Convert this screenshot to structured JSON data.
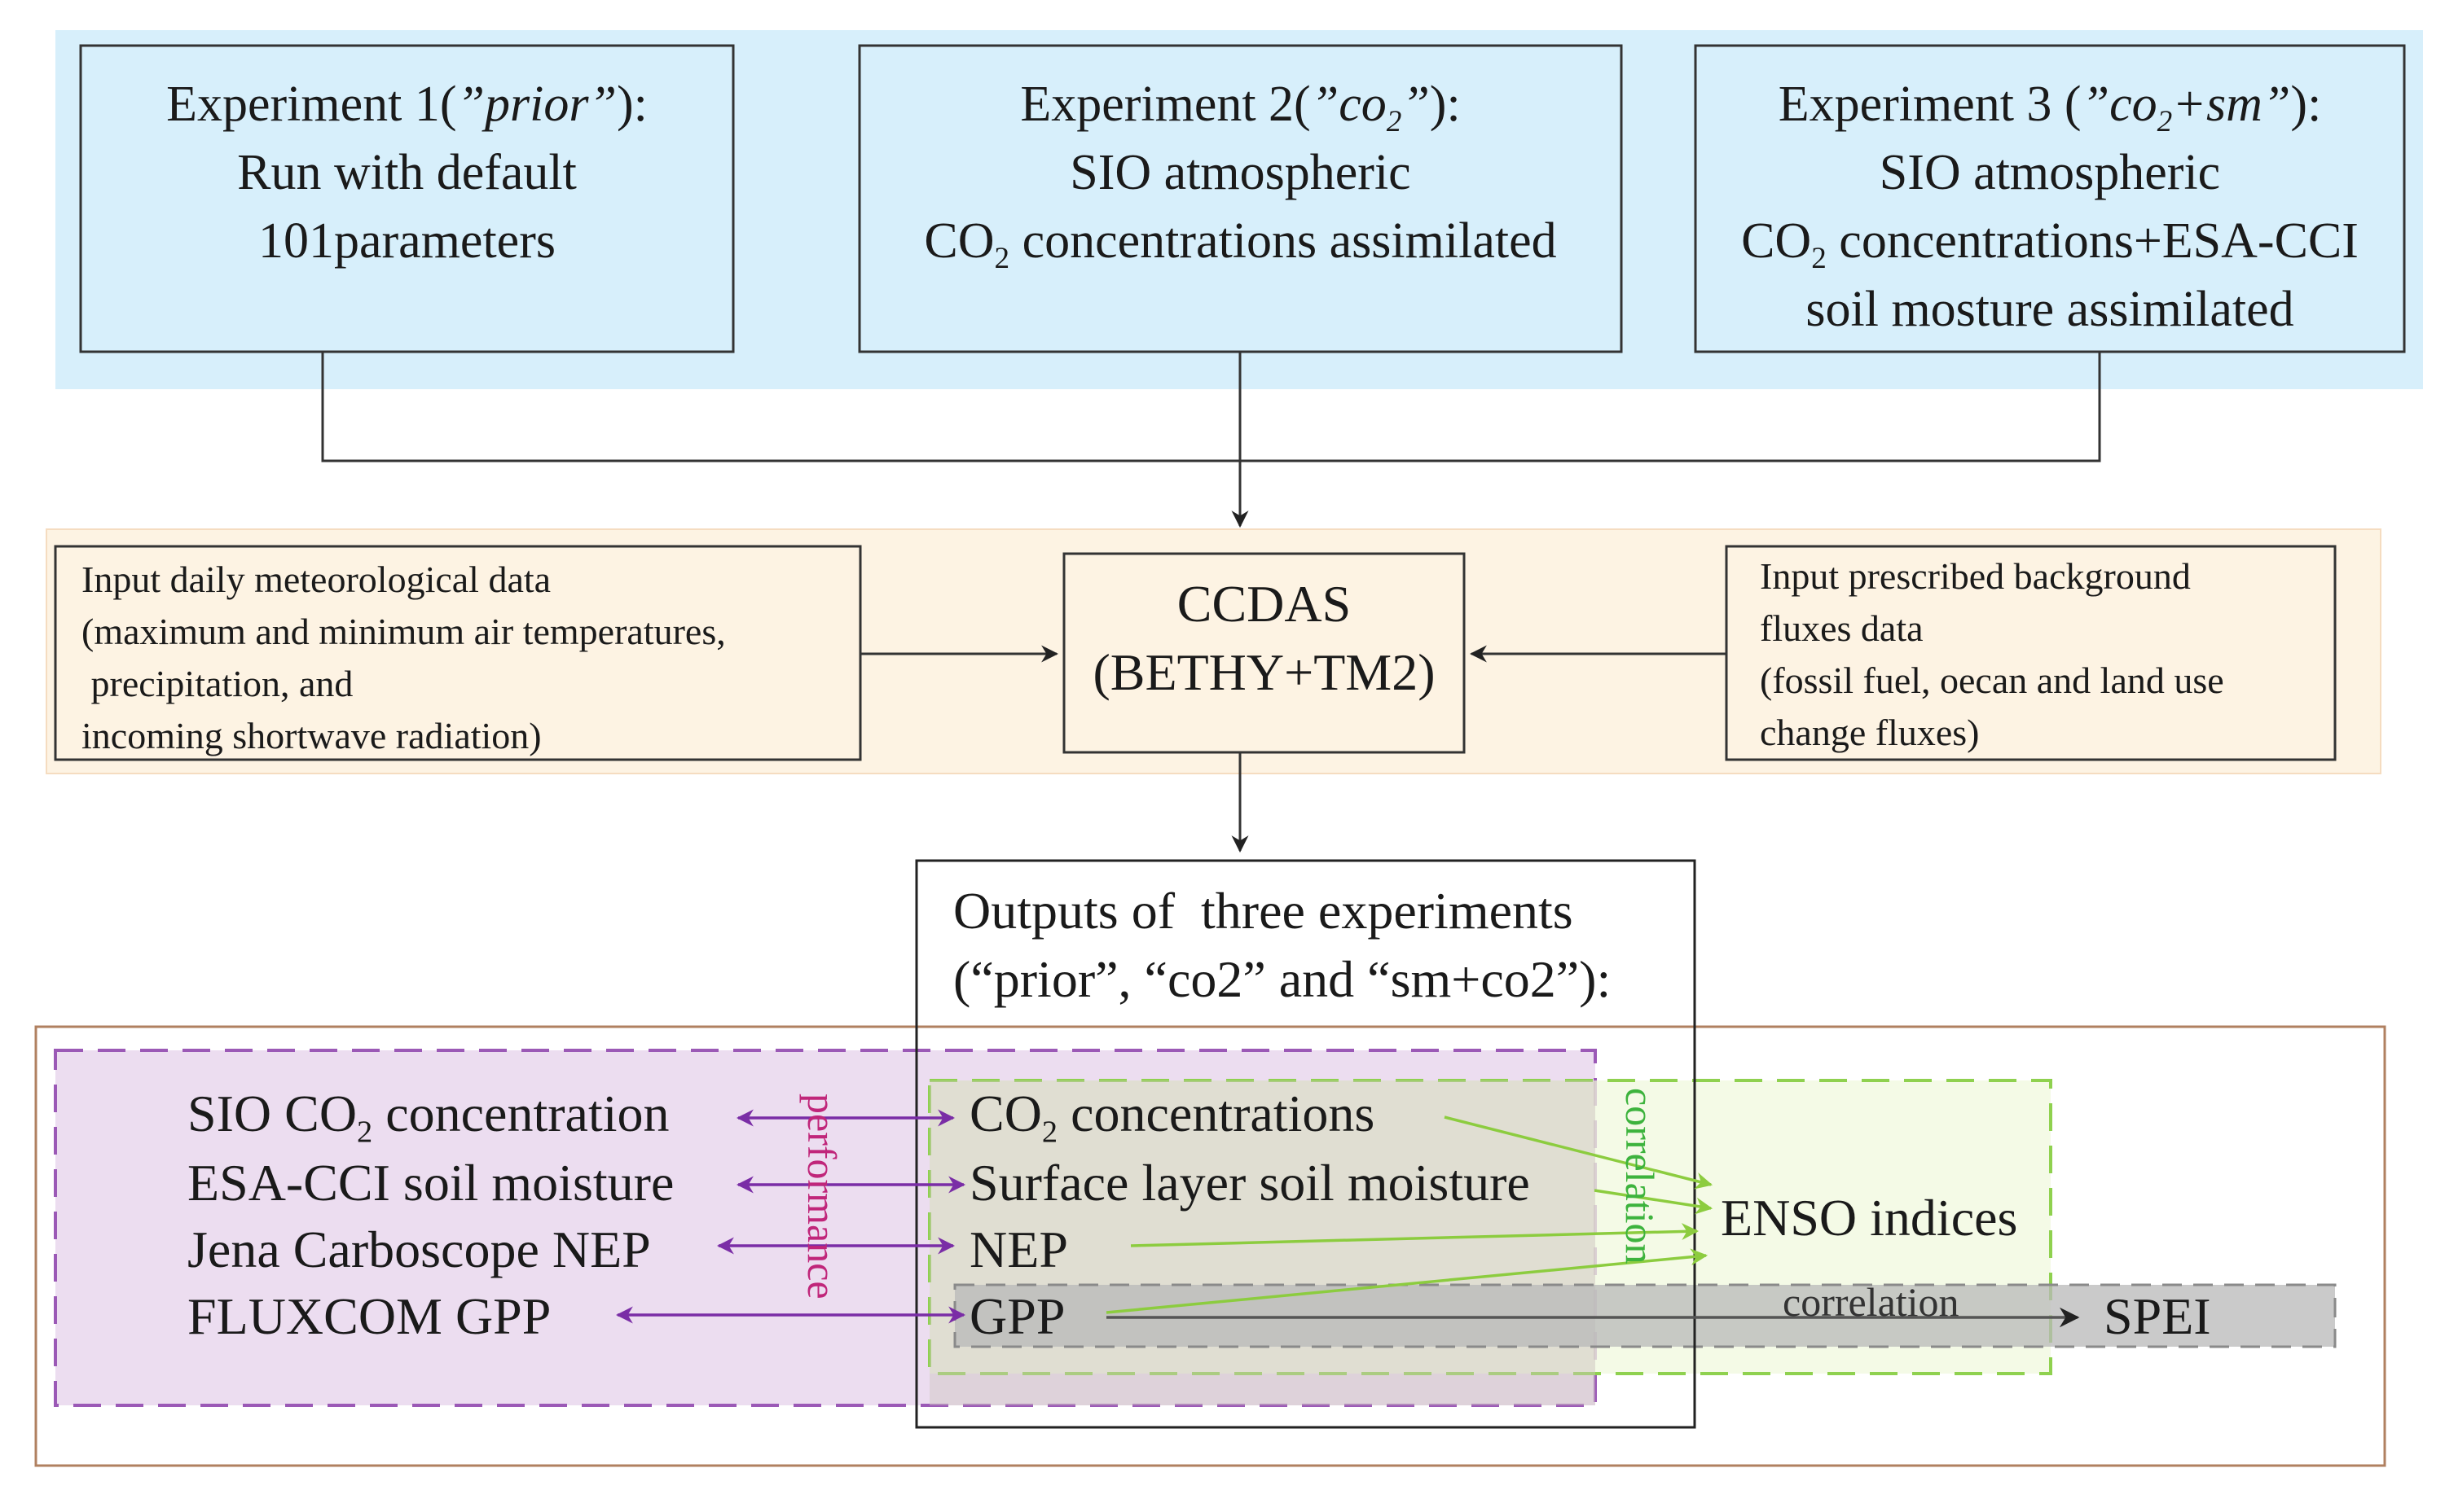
{
  "colors": {
    "experiments_band": "#d7effb",
    "inputs_band": "#fdf3e3",
    "performance_region": "#ead9ee",
    "performance_border": "#9b59b6",
    "performance_label": "#c0267a",
    "correlation_region": "#f0f8de",
    "correlation_border": "#8fd14f",
    "correlation_label": "#3db33d",
    "spei_band": "#c6c6c6",
    "outer_border": "#b08060",
    "purple_arrow": "#7a2da6",
    "green_arrow": "#8ccc3f"
  },
  "experiments": [
    {
      "title_prefix": "Experiment 1(",
      "title_name": "”prior”",
      "title_suffix": "):",
      "lines": [
        "Run with default",
        "101parameters"
      ]
    },
    {
      "title_prefix": "Experiment 2(",
      "title_name": "”co",
      "title_name_sub": "2",
      "title_name_end": "”",
      "title_suffix": "):",
      "line1": "SIO atmospheric",
      "line2_a": "CO",
      "line2_sub": "2",
      "line2_b": " concentrations assimilated"
    },
    {
      "title_prefix": "Experiment 3 (",
      "title_name": "”co",
      "title_name_sub": "2",
      "title_name_end": "+sm”",
      "title_suffix": "):",
      "line1": "SIO atmospheric",
      "line2_a": "CO",
      "line2_sub": "2",
      "line2_b": " concentrations+ESA-CCI",
      "line3": "soil mosture assimilated"
    }
  ],
  "inputs": {
    "meteorological": [
      "Input daily meteorological data",
      "(maximum and minimum air temperatures,",
      " precipitation, and",
      "incoming shortwave radiation)"
    ],
    "background": [
      "Input prescribed background",
      "fluxes data",
      "(fossil fuel, oecan and land use",
      "change fluxes)"
    ]
  },
  "ccdas": {
    "line1": "CCDAS",
    "line2": "(BETHY+TM2)"
  },
  "outputs": {
    "line1": "Outputs of  three experiments",
    "line2": "(“prior”, “co2” and “sm+co2”):",
    "items": {
      "co2_a": "CO",
      "co2_sub": "2",
      "co2_b": " concentrations",
      "soil": "Surface layer soil moisture",
      "nep": "NEP",
      "gpp": "GPP"
    }
  },
  "observations": {
    "sio_a": "SIO CO",
    "sio_sub": "2",
    "sio_b": " concentration",
    "esa": "ESA-CCI soil moisture",
    "jena": "Jena Carboscope NEP",
    "fluxcom": "FLUXCOM GPP"
  },
  "labels": {
    "performance": "performance",
    "correlation_vertical": "correlation",
    "correlation_horizontal": "correlation",
    "enso": "ENSO indices",
    "spei": "SPEI"
  }
}
